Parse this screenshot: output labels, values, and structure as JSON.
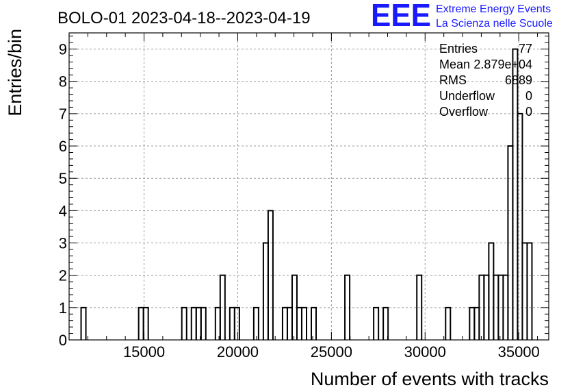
{
  "chart_data": {
    "type": "bar",
    "title": "BOLO-01 2023-04-18--2023-04-19",
    "xlabel": "Number of events with tracks",
    "ylabel": "Entries/bin",
    "xlim": [
      11000,
      36600
    ],
    "ylim": [
      0,
      9.5
    ],
    "x_ticks": [
      15000,
      20000,
      25000,
      30000,
      35000
    ],
    "y_ticks": [
      0,
      1,
      2,
      3,
      4,
      5,
      6,
      7,
      8,
      9
    ],
    "grid": true,
    "legend": "top-right",
    "bin_width": 256,
    "bins": [
      {
        "x": 11640,
        "count": 1
      },
      {
        "x": 14712,
        "count": 1
      },
      {
        "x": 14968,
        "count": 1
      },
      {
        "x": 17016,
        "count": 1
      },
      {
        "x": 17528,
        "count": 1
      },
      {
        "x": 17784,
        "count": 1
      },
      {
        "x": 18040,
        "count": 1
      },
      {
        "x": 18808,
        "count": 1
      },
      {
        "x": 19064,
        "count": 2
      },
      {
        "x": 19576,
        "count": 1
      },
      {
        "x": 19832,
        "count": 1
      },
      {
        "x": 20856,
        "count": 1
      },
      {
        "x": 21368,
        "count": 3
      },
      {
        "x": 21624,
        "count": 4
      },
      {
        "x": 22392,
        "count": 1
      },
      {
        "x": 22648,
        "count": 1
      },
      {
        "x": 22904,
        "count": 2
      },
      {
        "x": 23160,
        "count": 1
      },
      {
        "x": 23416,
        "count": 1
      },
      {
        "x": 23928,
        "count": 1
      },
      {
        "x": 25720,
        "count": 2
      },
      {
        "x": 27256,
        "count": 1
      },
      {
        "x": 27768,
        "count": 1
      },
      {
        "x": 29560,
        "count": 2
      },
      {
        "x": 31096,
        "count": 1
      },
      {
        "x": 32376,
        "count": 1
      },
      {
        "x": 32632,
        "count": 1
      },
      {
        "x": 32888,
        "count": 2
      },
      {
        "x": 33144,
        "count": 2
      },
      {
        "x": 33400,
        "count": 3
      },
      {
        "x": 33656,
        "count": 2
      },
      {
        "x": 33912,
        "count": 2
      },
      {
        "x": 34168,
        "count": 2
      },
      {
        "x": 34424,
        "count": 6
      },
      {
        "x": 34680,
        "count": 9
      },
      {
        "x": 34936,
        "count": 7
      },
      {
        "x": 35192,
        "count": 3
      },
      {
        "x": 35448,
        "count": 3
      }
    ],
    "stats": [
      {
        "label": "Entries",
        "value": "77"
      },
      {
        "label": "Mean",
        "value": "2.879e+04"
      },
      {
        "label": "RMS",
        "value": "6889"
      },
      {
        "label": "Underflow",
        "value": "0"
      },
      {
        "label": "Overflow",
        "value": "0"
      }
    ]
  },
  "logo": {
    "mark": "EEE",
    "line1": "Extreme Energy Events",
    "line2": "La Scienza nelle Scuole",
    "color": "#1a1aff"
  },
  "colors": {
    "line": "#000000",
    "grid": "#9a9a9a",
    "background": "#ffffff"
  }
}
